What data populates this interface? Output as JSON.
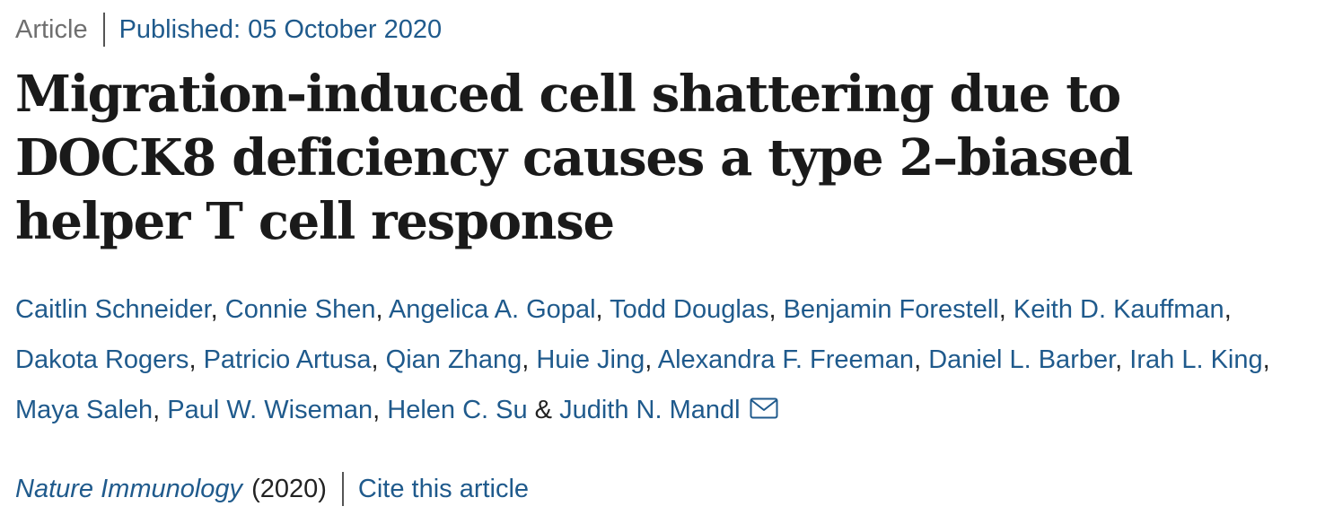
{
  "header": {
    "article_type": "Article",
    "published": "Published: 05 October 2020"
  },
  "title": "Migration-induced cell shattering due to DOCK8 deficiency causes a type 2–biased helper T cell response",
  "authors": [
    "Caitlin Schneider",
    "Connie Shen",
    "Angelica A. Gopal",
    "Todd Douglas",
    "Benjamin Forestell",
    "Keith D. Kauffman",
    "Dakota Rogers",
    "Patricio Artusa",
    "Qian Zhang",
    "Huie Jing",
    "Alexandra F. Freeman",
    "Daniel L. Barber",
    "Irah L. King",
    "Maya Saleh",
    "Paul W. Wiseman",
    "Helen C. Su",
    "Judith N. Mandl"
  ],
  "separators": {
    "comma": ", ",
    "ampersand": " & "
  },
  "footer": {
    "journal": "Nature Immunology",
    "year": "(2020)",
    "cite_label": "Cite this article"
  },
  "icons": {
    "corresponding_author": "mail-icon"
  },
  "colors": {
    "link": "#1f5a8c",
    "muted": "#6f6f6f",
    "text": "#222222"
  }
}
